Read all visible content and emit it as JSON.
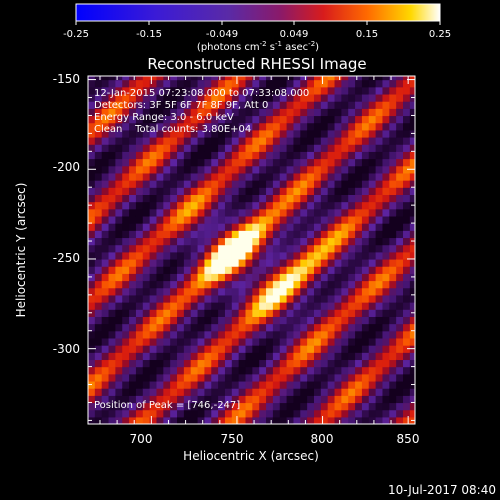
{
  "chart_data": {
    "type": "heatmap",
    "title": "Reconstructed RHESSI Image",
    "xlabel": "Heliocentric X (arcsec)",
    "ylabel": "Heliocentric Y (arcsec)",
    "xlim": [
      663,
      854
    ],
    "ylim": [
      -342,
      -148
    ],
    "xticks": [
      700,
      750,
      800,
      850
    ],
    "yticks": [
      -150,
      -200,
      -250,
      -300
    ],
    "colorbar": {
      "ticks": [
        "-0.25",
        "-0.15",
        "-0.049",
        "0.049",
        "0.15",
        "0.25"
      ],
      "range": [
        -0.25,
        0.25
      ],
      "unit": "(photons cm-2 s-1 asec-2)",
      "colormap": "blue-purple-red-yellow-white"
    },
    "info": {
      "time": "12-Jan-2015 07:23:08.000 to 07:33:08.000",
      "detectors": "Detectors: 3F 5F 6F 7F 8F 9F, Att 0",
      "energy": "Energy Range: 3.0 - 6.0 keV",
      "method": "Clean    Total counts: 3.80E+04"
    },
    "peak_label": "Position of Peak = [746,-247]",
    "peak": [
      746,
      -247
    ],
    "stripe_slope_deg": 42,
    "stripe_period_arcsec": 35
  },
  "footer": {
    "timestamp": "10-Jul-2017 08:40"
  }
}
